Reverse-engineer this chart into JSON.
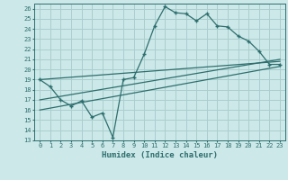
{
  "xlabel": "Humidex (Indice chaleur)",
  "bg_color": "#cce8e8",
  "grid_color": "#aacece",
  "line_color": "#2e6e6e",
  "xlim": [
    -0.5,
    23.5
  ],
  "ylim": [
    13,
    26.5
  ],
  "xticks": [
    0,
    1,
    2,
    3,
    4,
    5,
    6,
    7,
    8,
    9,
    10,
    11,
    12,
    13,
    14,
    15,
    16,
    17,
    18,
    19,
    20,
    21,
    22,
    23
  ],
  "yticks": [
    13,
    14,
    15,
    16,
    17,
    18,
    19,
    20,
    21,
    22,
    23,
    24,
    25,
    26
  ],
  "line1_x": [
    0,
    1,
    2,
    3,
    4,
    5,
    6,
    7,
    8,
    9,
    10,
    11,
    12,
    13,
    14,
    15,
    16,
    17,
    18,
    19,
    20,
    21,
    22,
    23
  ],
  "line1_y": [
    19.0,
    18.3,
    17.0,
    16.4,
    16.9,
    15.3,
    15.7,
    13.3,
    19.0,
    19.2,
    21.5,
    24.3,
    26.2,
    25.6,
    25.5,
    24.8,
    25.5,
    24.3,
    24.2,
    23.3,
    22.8,
    21.8,
    20.5,
    20.5
  ],
  "line2_x": [
    0,
    23
  ],
  "line2_y": [
    19.0,
    20.8
  ],
  "line3_x": [
    0,
    23
  ],
  "line3_y": [
    17.0,
    21.0
  ],
  "line4_x": [
    0,
    23
  ],
  "line4_y": [
    16.0,
    20.3
  ]
}
